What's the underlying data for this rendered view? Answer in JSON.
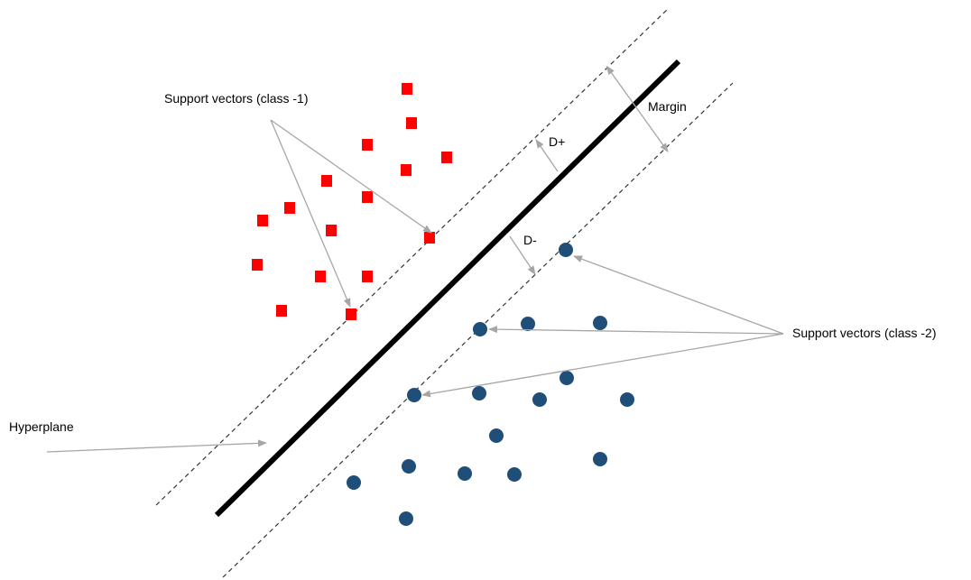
{
  "labels": {
    "support_vectors_class_neg1": "Support vectors (class -1)",
    "support_vectors_class_neg2": "Support vectors (class -2)",
    "hyperplane": "Hyperplane",
    "margin": "Margin",
    "d_plus": "D+",
    "d_minus": "D-"
  },
  "colors": {
    "class_neg1": "#ff0000",
    "class_neg2": "#1f4e79",
    "hyperplane": "#000000",
    "margin_lines": "#333333",
    "arrows": "#a6a6a6"
  }
}
